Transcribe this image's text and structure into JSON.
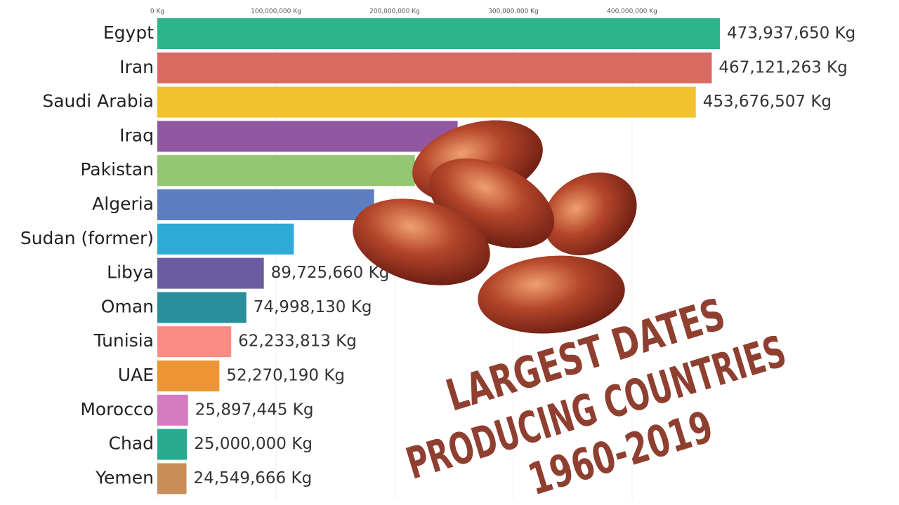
{
  "chart_data": {
    "type": "bar",
    "orientation": "horizontal",
    "title_lines": [
      "LARGEST DATES",
      "PRODUCING COUNTRIES",
      "1960-2019"
    ],
    "categories": [
      "Egypt",
      "Iran",
      "Saudi Arabia",
      "Iraq",
      "Pakistan",
      "Algeria",
      "Sudan (former)",
      "Libya",
      "Oman",
      "Tunisia",
      "UAE",
      "Morocco",
      "Chad",
      "Yemen"
    ],
    "values": [
      473937650,
      467121263,
      453676507,
      253000000,
      217000000,
      182600000,
      115010000,
      89725660,
      74998130,
      62233813,
      52270190,
      25897445,
      25000000,
      24549666
    ],
    "value_labels": [
      "473,937,650 Kg",
      "467,121,263 Kg",
      "453,676,507 Kg",
      null,
      null,
      null,
      null,
      "89,725,660 Kg",
      "74,998,130 Kg",
      "62,233,813 Kg",
      "52,270,190 Kg",
      "25,897,445 Kg",
      "25,000,000 Kg",
      "24,549,666 Kg"
    ],
    "colors": [
      "#2eb38a",
      "#d96a5f",
      "#f2c12e",
      "#9157a3",
      "#93c572",
      "#5b7ec2",
      "#2fa9d6",
      "#6a5c9e",
      "#2a8f9c",
      "#fa8c84",
      "#ee9533",
      "#d67ac0",
      "#2aa98f",
      "#c98e58"
    ],
    "xlim": [
      0,
      500000000
    ],
    "xticks": [
      {
        "value": 0,
        "label": "0 Kg"
      },
      {
        "value": 100000000,
        "label": "100,000,000 Kg"
      },
      {
        "value": 200000000,
        "label": "200,000,000 Kg"
      },
      {
        "value": 300000000,
        "label": "300,000,000 Kg"
      },
      {
        "value": 400000000,
        "label": "400,000,000 Kg"
      }
    ],
    "grid": true
  }
}
